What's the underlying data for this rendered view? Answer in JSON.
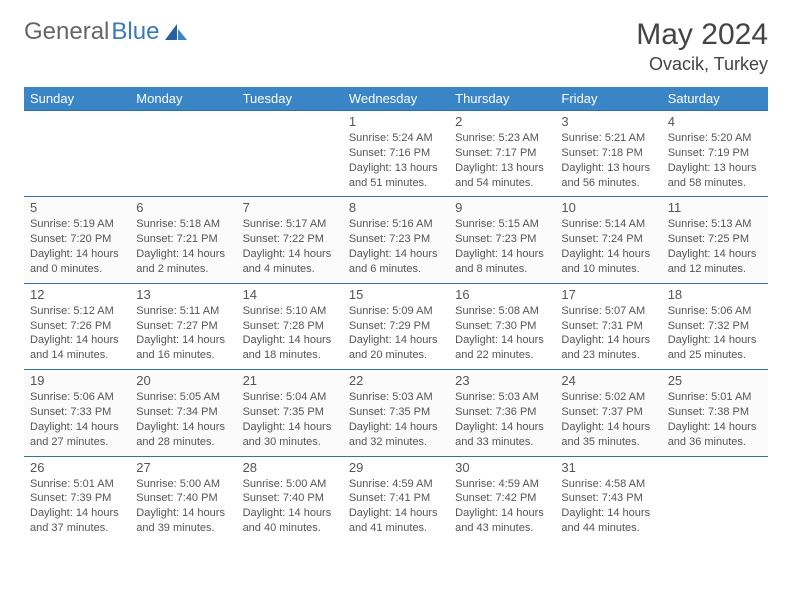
{
  "logo": {
    "part1": "General",
    "part2": "Blue"
  },
  "title": "May 2024",
  "location": "Ovacik, Turkey",
  "colors": {
    "header_bg": "#3a85c6",
    "header_border": "#2a6fa8",
    "row_border": "#3a6fa0",
    "text": "#555555",
    "logo_blue": "#3a7ab8"
  },
  "weekdays": [
    "Sunday",
    "Monday",
    "Tuesday",
    "Wednesday",
    "Thursday",
    "Friday",
    "Saturday"
  ],
  "weeks": [
    [
      {
        "n": "",
        "sunrise": "",
        "sunset": "",
        "daylight": ""
      },
      {
        "n": "",
        "sunrise": "",
        "sunset": "",
        "daylight": ""
      },
      {
        "n": "",
        "sunrise": "",
        "sunset": "",
        "daylight": ""
      },
      {
        "n": "1",
        "sunrise": "Sunrise: 5:24 AM",
        "sunset": "Sunset: 7:16 PM",
        "daylight": "Daylight: 13 hours and 51 minutes."
      },
      {
        "n": "2",
        "sunrise": "Sunrise: 5:23 AM",
        "sunset": "Sunset: 7:17 PM",
        "daylight": "Daylight: 13 hours and 54 minutes."
      },
      {
        "n": "3",
        "sunrise": "Sunrise: 5:21 AM",
        "sunset": "Sunset: 7:18 PM",
        "daylight": "Daylight: 13 hours and 56 minutes."
      },
      {
        "n": "4",
        "sunrise": "Sunrise: 5:20 AM",
        "sunset": "Sunset: 7:19 PM",
        "daylight": "Daylight: 13 hours and 58 minutes."
      }
    ],
    [
      {
        "n": "5",
        "sunrise": "Sunrise: 5:19 AM",
        "sunset": "Sunset: 7:20 PM",
        "daylight": "Daylight: 14 hours and 0 minutes."
      },
      {
        "n": "6",
        "sunrise": "Sunrise: 5:18 AM",
        "sunset": "Sunset: 7:21 PM",
        "daylight": "Daylight: 14 hours and 2 minutes."
      },
      {
        "n": "7",
        "sunrise": "Sunrise: 5:17 AM",
        "sunset": "Sunset: 7:22 PM",
        "daylight": "Daylight: 14 hours and 4 minutes."
      },
      {
        "n": "8",
        "sunrise": "Sunrise: 5:16 AM",
        "sunset": "Sunset: 7:23 PM",
        "daylight": "Daylight: 14 hours and 6 minutes."
      },
      {
        "n": "9",
        "sunrise": "Sunrise: 5:15 AM",
        "sunset": "Sunset: 7:23 PM",
        "daylight": "Daylight: 14 hours and 8 minutes."
      },
      {
        "n": "10",
        "sunrise": "Sunrise: 5:14 AM",
        "sunset": "Sunset: 7:24 PM",
        "daylight": "Daylight: 14 hours and 10 minutes."
      },
      {
        "n": "11",
        "sunrise": "Sunrise: 5:13 AM",
        "sunset": "Sunset: 7:25 PM",
        "daylight": "Daylight: 14 hours and 12 minutes."
      }
    ],
    [
      {
        "n": "12",
        "sunrise": "Sunrise: 5:12 AM",
        "sunset": "Sunset: 7:26 PM",
        "daylight": "Daylight: 14 hours and 14 minutes."
      },
      {
        "n": "13",
        "sunrise": "Sunrise: 5:11 AM",
        "sunset": "Sunset: 7:27 PM",
        "daylight": "Daylight: 14 hours and 16 minutes."
      },
      {
        "n": "14",
        "sunrise": "Sunrise: 5:10 AM",
        "sunset": "Sunset: 7:28 PM",
        "daylight": "Daylight: 14 hours and 18 minutes."
      },
      {
        "n": "15",
        "sunrise": "Sunrise: 5:09 AM",
        "sunset": "Sunset: 7:29 PM",
        "daylight": "Daylight: 14 hours and 20 minutes."
      },
      {
        "n": "16",
        "sunrise": "Sunrise: 5:08 AM",
        "sunset": "Sunset: 7:30 PM",
        "daylight": "Daylight: 14 hours and 22 minutes."
      },
      {
        "n": "17",
        "sunrise": "Sunrise: 5:07 AM",
        "sunset": "Sunset: 7:31 PM",
        "daylight": "Daylight: 14 hours and 23 minutes."
      },
      {
        "n": "18",
        "sunrise": "Sunrise: 5:06 AM",
        "sunset": "Sunset: 7:32 PM",
        "daylight": "Daylight: 14 hours and 25 minutes."
      }
    ],
    [
      {
        "n": "19",
        "sunrise": "Sunrise: 5:06 AM",
        "sunset": "Sunset: 7:33 PM",
        "daylight": "Daylight: 14 hours and 27 minutes."
      },
      {
        "n": "20",
        "sunrise": "Sunrise: 5:05 AM",
        "sunset": "Sunset: 7:34 PM",
        "daylight": "Daylight: 14 hours and 28 minutes."
      },
      {
        "n": "21",
        "sunrise": "Sunrise: 5:04 AM",
        "sunset": "Sunset: 7:35 PM",
        "daylight": "Daylight: 14 hours and 30 minutes."
      },
      {
        "n": "22",
        "sunrise": "Sunrise: 5:03 AM",
        "sunset": "Sunset: 7:35 PM",
        "daylight": "Daylight: 14 hours and 32 minutes."
      },
      {
        "n": "23",
        "sunrise": "Sunrise: 5:03 AM",
        "sunset": "Sunset: 7:36 PM",
        "daylight": "Daylight: 14 hours and 33 minutes."
      },
      {
        "n": "24",
        "sunrise": "Sunrise: 5:02 AM",
        "sunset": "Sunset: 7:37 PM",
        "daylight": "Daylight: 14 hours and 35 minutes."
      },
      {
        "n": "25",
        "sunrise": "Sunrise: 5:01 AM",
        "sunset": "Sunset: 7:38 PM",
        "daylight": "Daylight: 14 hours and 36 minutes."
      }
    ],
    [
      {
        "n": "26",
        "sunrise": "Sunrise: 5:01 AM",
        "sunset": "Sunset: 7:39 PM",
        "daylight": "Daylight: 14 hours and 37 minutes."
      },
      {
        "n": "27",
        "sunrise": "Sunrise: 5:00 AM",
        "sunset": "Sunset: 7:40 PM",
        "daylight": "Daylight: 14 hours and 39 minutes."
      },
      {
        "n": "28",
        "sunrise": "Sunrise: 5:00 AM",
        "sunset": "Sunset: 7:40 PM",
        "daylight": "Daylight: 14 hours and 40 minutes."
      },
      {
        "n": "29",
        "sunrise": "Sunrise: 4:59 AM",
        "sunset": "Sunset: 7:41 PM",
        "daylight": "Daylight: 14 hours and 41 minutes."
      },
      {
        "n": "30",
        "sunrise": "Sunrise: 4:59 AM",
        "sunset": "Sunset: 7:42 PM",
        "daylight": "Daylight: 14 hours and 43 minutes."
      },
      {
        "n": "31",
        "sunrise": "Sunrise: 4:58 AM",
        "sunset": "Sunset: 7:43 PM",
        "daylight": "Daylight: 14 hours and 44 minutes."
      },
      {
        "n": "",
        "sunrise": "",
        "sunset": "",
        "daylight": ""
      }
    ]
  ]
}
